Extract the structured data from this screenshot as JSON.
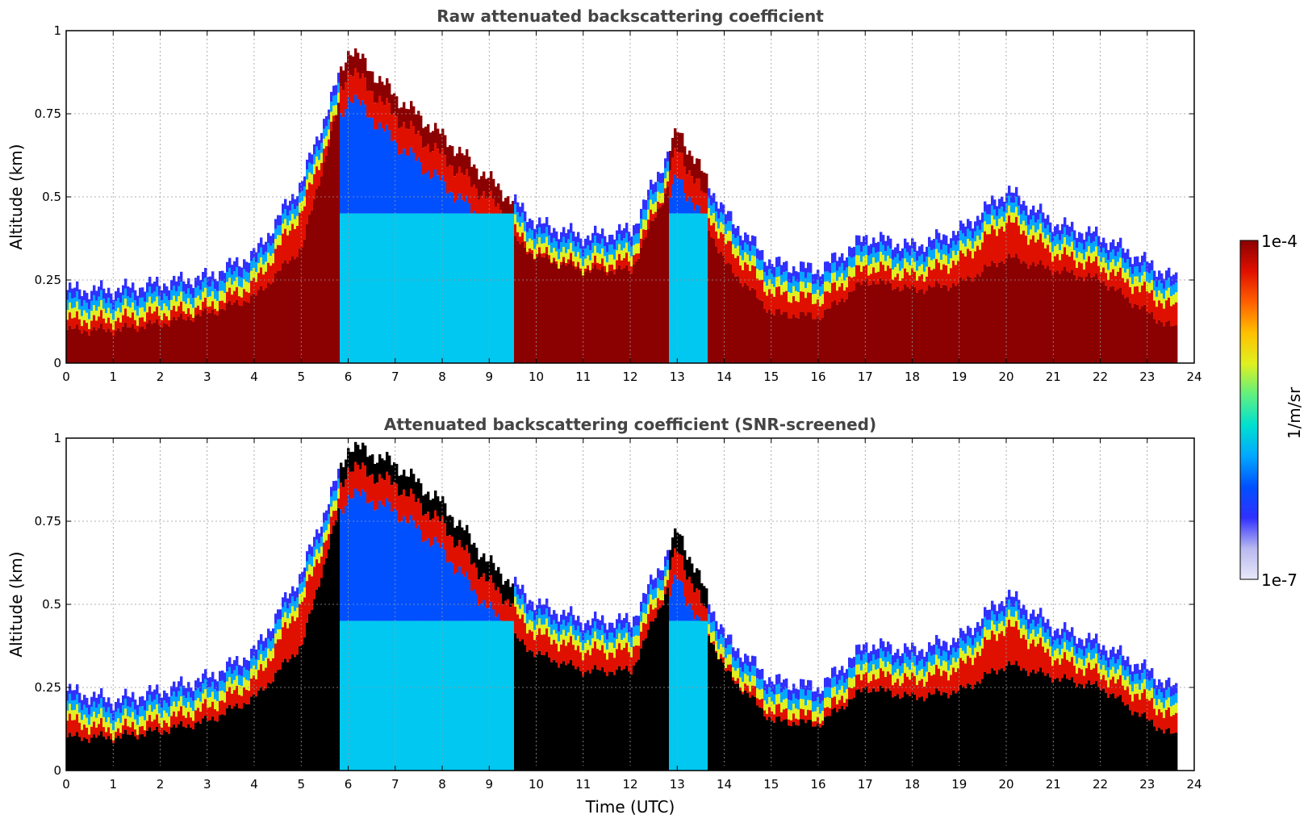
{
  "chart_data": [
    {
      "type": "heatmap",
      "title": "Raw attenuated backscattering coefficient",
      "xlabel": "",
      "ylabel": "Altitude (km)",
      "xlim": [
        0,
        24
      ],
      "ylim": [
        0,
        1
      ],
      "x_ticks": [
        "0",
        "1",
        "2",
        "3",
        "4",
        "5",
        "6",
        "7",
        "8",
        "9",
        "10",
        "11",
        "12",
        "13",
        "14",
        "15",
        "16",
        "17",
        "18",
        "19",
        "20",
        "21",
        "22",
        "23",
        "24"
      ],
      "y_ticks": [
        "0",
        "0.25",
        "0.5",
        "0.75",
        "1"
      ],
      "grid": true,
      "layer_top_km": {
        "time_utc": [
          0,
          1,
          2,
          3,
          4,
          5,
          6,
          7,
          8,
          9,
          10,
          11,
          12,
          13,
          14,
          15,
          16,
          17,
          18,
          19,
          20,
          21,
          22,
          23,
          23.6
        ],
        "altitude_km": [
          0.22,
          0.22,
          0.24,
          0.26,
          0.33,
          0.55,
          0.95,
          0.8,
          0.68,
          0.55,
          0.42,
          0.38,
          0.4,
          0.7,
          0.45,
          0.3,
          0.28,
          0.38,
          0.35,
          0.4,
          0.52,
          0.42,
          0.38,
          0.3,
          0.25
        ]
      },
      "saturated_layer_top_km": {
        "time_utc": [
          0,
          1,
          2,
          3,
          4,
          5,
          6,
          7,
          8,
          9,
          10,
          11,
          12,
          13,
          14,
          15,
          16,
          17,
          18,
          19,
          20,
          21,
          22,
          23,
          23.6
        ],
        "altitude_km": [
          0.1,
          0.1,
          0.12,
          0.15,
          0.2,
          0.35,
          0.9,
          0.75,
          0.6,
          0.42,
          0.32,
          0.28,
          0.28,
          0.6,
          0.3,
          0.15,
          0.14,
          0.25,
          0.22,
          0.24,
          0.32,
          0.28,
          0.25,
          0.15,
          0.1
        ]
      }
    },
    {
      "type": "heatmap",
      "title": "Attenuated backscattering coefficient (SNR-screened)",
      "xlabel": "Time (UTC)",
      "ylabel": "Altitude (km)",
      "xlim": [
        0,
        24
      ],
      "ylim": [
        0,
        1
      ],
      "x_ticks": [
        "0",
        "1",
        "2",
        "3",
        "4",
        "5",
        "6",
        "7",
        "8",
        "9",
        "10",
        "11",
        "12",
        "13",
        "14",
        "15",
        "16",
        "17",
        "18",
        "19",
        "20",
        "21",
        "22",
        "23",
        "24"
      ],
      "y_ticks": [
        "0",
        "0.25",
        "0.5",
        "0.75",
        "1"
      ],
      "grid": true,
      "layer_top_km": {
        "time_utc": [
          0,
          1,
          2,
          3,
          4,
          5,
          6,
          7,
          8,
          9,
          10,
          11,
          12,
          13,
          14,
          15,
          16,
          17,
          18,
          19,
          20,
          21,
          22,
          23,
          23.6
        ],
        "altitude_km": [
          0.24,
          0.21,
          0.24,
          0.28,
          0.36,
          0.6,
          0.98,
          0.92,
          0.8,
          0.62,
          0.5,
          0.45,
          0.45,
          0.72,
          0.4,
          0.27,
          0.25,
          0.38,
          0.36,
          0.4,
          0.53,
          0.43,
          0.38,
          0.3,
          0.24
        ]
      },
      "saturated_layer_top_km": {
        "time_utc": [
          0,
          1,
          2,
          3,
          4,
          5,
          6,
          7,
          8,
          9,
          10,
          11,
          12,
          13,
          14,
          15,
          16,
          17,
          18,
          19,
          20,
          21,
          22,
          23,
          23.6
        ],
        "altitude_km": [
          0.1,
          0.1,
          0.12,
          0.15,
          0.22,
          0.38,
          0.9,
          0.78,
          0.65,
          0.45,
          0.35,
          0.3,
          0.3,
          0.62,
          0.3,
          0.15,
          0.14,
          0.25,
          0.22,
          0.24,
          0.32,
          0.28,
          0.25,
          0.15,
          0.1
        ]
      }
    }
  ],
  "colorbar": {
    "label": "1/m/sr",
    "min_label": "1e-7",
    "max_label": "1e-4",
    "scale": "log",
    "colors": [
      "#e8e8fa",
      "#b8b8f0",
      "#3030ff",
      "#0050ff",
      "#00a8ff",
      "#00e0d0",
      "#60f080",
      "#e0f020",
      "#ffc000",
      "#ff6000",
      "#e01000",
      "#8b0000"
    ]
  }
}
